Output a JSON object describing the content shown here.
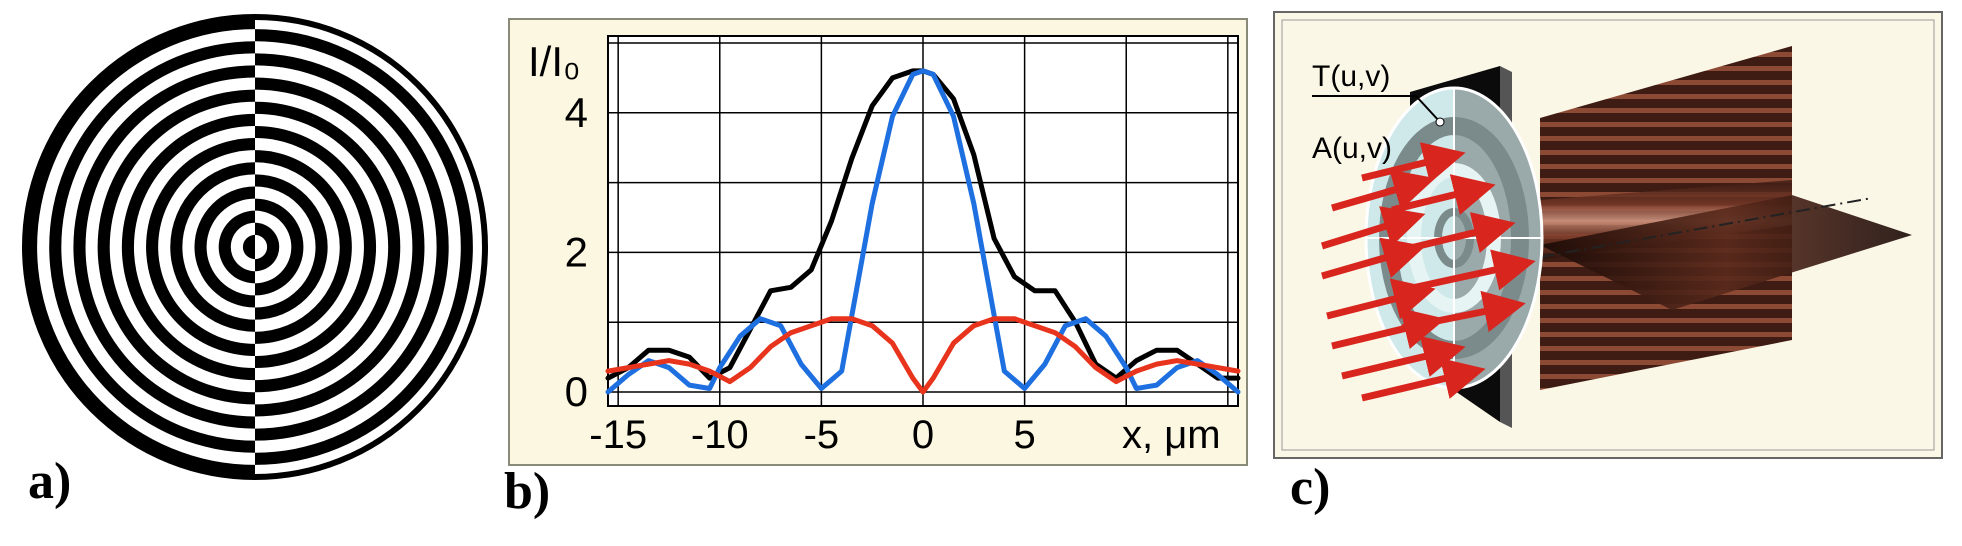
{
  "panels": {
    "a": {
      "label": "a)"
    },
    "b": {
      "label": "b)"
    },
    "c": {
      "label": "c)"
    }
  },
  "chart_data": {
    "type": "line",
    "ylabel": "I/I₀",
    "xlabel": "x, μm",
    "xlim": [
      -15.5,
      15.5
    ],
    "ylim": [
      -0.2,
      5.1
    ],
    "x_ticks": [
      -15,
      -10,
      -5,
      0,
      5
    ],
    "y_ticks": [
      0,
      2,
      4
    ],
    "grid": true,
    "background": "#fbf7e1",
    "series": [
      {
        "color": "#000000",
        "x": [
          -15.5,
          -14.5,
          -13.5,
          -12.5,
          -11.5,
          -10.5,
          -9.5,
          -8.5,
          -7.5,
          -6.5,
          -5.5,
          -4.5,
          -3.5,
          -2.5,
          -1.5,
          -0.5,
          0,
          0.5,
          1.5,
          2.5,
          3.5,
          4.5,
          5.5,
          6.5,
          7.5,
          8.5,
          9.5,
          10.5,
          11.5,
          12.5,
          13.5,
          14.5,
          15.5
        ],
        "y": [
          0.2,
          0.35,
          0.6,
          0.6,
          0.5,
          0.2,
          0.35,
          0.9,
          1.45,
          1.5,
          1.75,
          2.45,
          3.35,
          4.1,
          4.5,
          4.6,
          4.6,
          4.55,
          4.2,
          3.4,
          2.2,
          1.65,
          1.45,
          1.45,
          1.0,
          0.4,
          0.2,
          0.45,
          0.6,
          0.6,
          0.4,
          0.2,
          0.2
        ]
      },
      {
        "color": "#1e6fe0",
        "x": [
          -15.5,
          -14.5,
          -13.5,
          -12.5,
          -11.5,
          -10.5,
          -10,
          -9,
          -8,
          -7,
          -6,
          -5,
          -4,
          -3.5,
          -2.5,
          -1.5,
          -0.5,
          0,
          0.5,
          1.5,
          2.5,
          3.5,
          4,
          5,
          6,
          7,
          8,
          9,
          10,
          10.5,
          11.5,
          12.5,
          13.5,
          14.5,
          15.5
        ],
        "y": [
          0.0,
          0.25,
          0.45,
          0.35,
          0.1,
          0.05,
          0.35,
          0.8,
          1.05,
          0.95,
          0.4,
          0.05,
          0.3,
          1.1,
          2.7,
          3.95,
          4.55,
          4.6,
          4.55,
          3.95,
          2.7,
          1.1,
          0.3,
          0.05,
          0.4,
          0.95,
          1.05,
          0.8,
          0.35,
          0.05,
          0.1,
          0.35,
          0.45,
          0.25,
          0.0
        ]
      },
      {
        "color": "#e8341c",
        "x": [
          -15.5,
          -14.5,
          -13.5,
          -12.5,
          -11.5,
          -10.5,
          -9.5,
          -8.5,
          -7.5,
          -6.5,
          -5.5,
          -4.5,
          -3.5,
          -2.5,
          -1.5,
          -0.5,
          0,
          0.5,
          1.5,
          2.5,
          3.5,
          4.5,
          5.5,
          6.5,
          7.5,
          8.5,
          9.5,
          10.5,
          11.5,
          12.5,
          13.5,
          14.5,
          15.5
        ],
        "y": [
          0.3,
          0.35,
          0.4,
          0.45,
          0.4,
          0.3,
          0.15,
          0.35,
          0.65,
          0.85,
          0.95,
          1.05,
          1.05,
          0.95,
          0.7,
          0.2,
          0.0,
          0.2,
          0.7,
          0.95,
          1.05,
          1.05,
          0.95,
          0.85,
          0.65,
          0.35,
          0.15,
          0.3,
          0.4,
          0.45,
          0.4,
          0.35,
          0.3
        ]
      }
    ]
  },
  "schematic": {
    "t_label": "T(u,v)",
    "a_label": "A(u,v)",
    "plate_color": "#0b0b0b",
    "arrow_color": "#d8261f",
    "lens_color": "#cfe9ea",
    "beam_color": "#6e2c1d"
  }
}
